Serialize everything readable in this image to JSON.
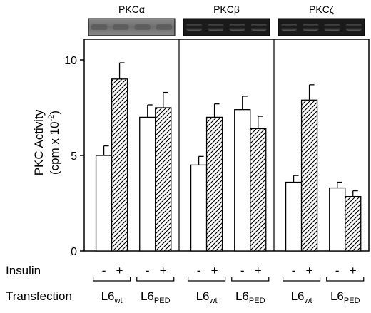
{
  "chart_data": {
    "type": "bar",
    "ylabel_line1": "PKC Activity",
    "ylabel_line2": "(cpm x 10",
    "ylabel_exp": "-2",
    "ylabel_close": ")",
    "ylim": [
      0,
      11
    ],
    "yticks": [
      0,
      5,
      10
    ],
    "grid": false,
    "panels": [
      {
        "name": "PKCα",
        "groups": [
          {
            "label": "L6",
            "sub": "wt",
            "values": [
              5.0,
              9.0
            ],
            "errors": [
              0.5,
              0.85
            ]
          },
          {
            "label": "L6",
            "sub": "PED",
            "values": [
              7.0,
              7.5
            ],
            "errors": [
              0.65,
              0.8
            ]
          }
        ]
      },
      {
        "name": "PKCβ",
        "groups": [
          {
            "label": "L6",
            "sub": "wt",
            "values": [
              4.5,
              7.0
            ],
            "errors": [
              0.45,
              0.7
            ]
          },
          {
            "label": "L6",
            "sub": "PED",
            "values": [
              7.4,
              6.4
            ],
            "errors": [
              0.7,
              0.65
            ]
          }
        ]
      },
      {
        "name": "PKCζ",
        "groups": [
          {
            "label": "L6",
            "sub": "wt",
            "values": [
              3.6,
              7.9
            ],
            "errors": [
              0.35,
              0.8
            ]
          },
          {
            "label": "L6",
            "sub": "PED",
            "values": [
              3.3,
              2.85
            ],
            "errors": [
              0.3,
              0.3
            ]
          }
        ]
      }
    ],
    "series": [
      {
        "insulin": "-",
        "pattern": "open"
      },
      {
        "insulin": "+",
        "pattern": "hatched"
      }
    ],
    "row_labels": {
      "insulin": "Insulin",
      "transfection": "Transfection"
    }
  }
}
